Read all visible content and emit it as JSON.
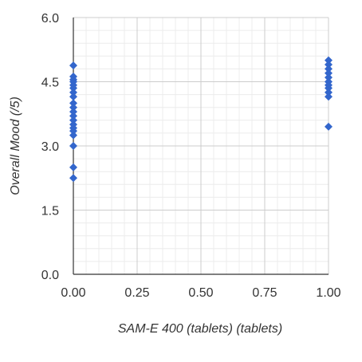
{
  "chart_data": {
    "type": "scatter",
    "title": "",
    "xlabel": "SAM-E 400 (tablets) (tablets)",
    "ylabel": "Overall Mood (/5)",
    "xlim": [
      0,
      1
    ],
    "ylim": [
      0,
      6
    ],
    "x_ticks": [
      0,
      0.25,
      0.5,
      0.75,
      1.0
    ],
    "x_tick_labels": [
      "0.00",
      "0.25",
      "0.50",
      "0.75",
      "1.00"
    ],
    "y_ticks": [
      0,
      1.5,
      3.0,
      4.5,
      6.0
    ],
    "y_tick_labels": [
      "0.0",
      "1.5",
      "3.0",
      "4.5",
      "6.0"
    ],
    "grid": true,
    "minor_grid": true,
    "marker": "diamond",
    "marker_color": "#3366cc",
    "series": [
      {
        "points": [
          {
            "x": 0,
            "y": 4.88
          },
          {
            "x": 0,
            "y": 4.62
          },
          {
            "x": 0,
            "y": 4.55
          },
          {
            "x": 0,
            "y": 4.5
          },
          {
            "x": 0,
            "y": 4.42
          },
          {
            "x": 0,
            "y": 4.35
          },
          {
            "x": 0,
            "y": 4.25
          },
          {
            "x": 0,
            "y": 4.15
          },
          {
            "x": 0,
            "y": 4.0
          },
          {
            "x": 0,
            "y": 3.9
          },
          {
            "x": 0,
            "y": 3.8
          },
          {
            "x": 0,
            "y": 3.7
          },
          {
            "x": 0,
            "y": 3.6
          },
          {
            "x": 0,
            "y": 3.5
          },
          {
            "x": 0,
            "y": 3.42
          },
          {
            "x": 0,
            "y": 3.35
          },
          {
            "x": 0,
            "y": 3.25
          },
          {
            "x": 0,
            "y": 3.0
          },
          {
            "x": 0,
            "y": 2.5
          },
          {
            "x": 0,
            "y": 2.25
          },
          {
            "x": 1,
            "y": 5.0
          },
          {
            "x": 1,
            "y": 4.9
          },
          {
            "x": 1,
            "y": 4.8
          },
          {
            "x": 1,
            "y": 4.7
          },
          {
            "x": 1,
            "y": 4.6
          },
          {
            "x": 1,
            "y": 4.5
          },
          {
            "x": 1,
            "y": 4.42
          },
          {
            "x": 1,
            "y": 4.35
          },
          {
            "x": 1,
            "y": 4.25
          },
          {
            "x": 1,
            "y": 4.15
          },
          {
            "x": 1,
            "y": 3.45
          }
        ]
      }
    ]
  }
}
